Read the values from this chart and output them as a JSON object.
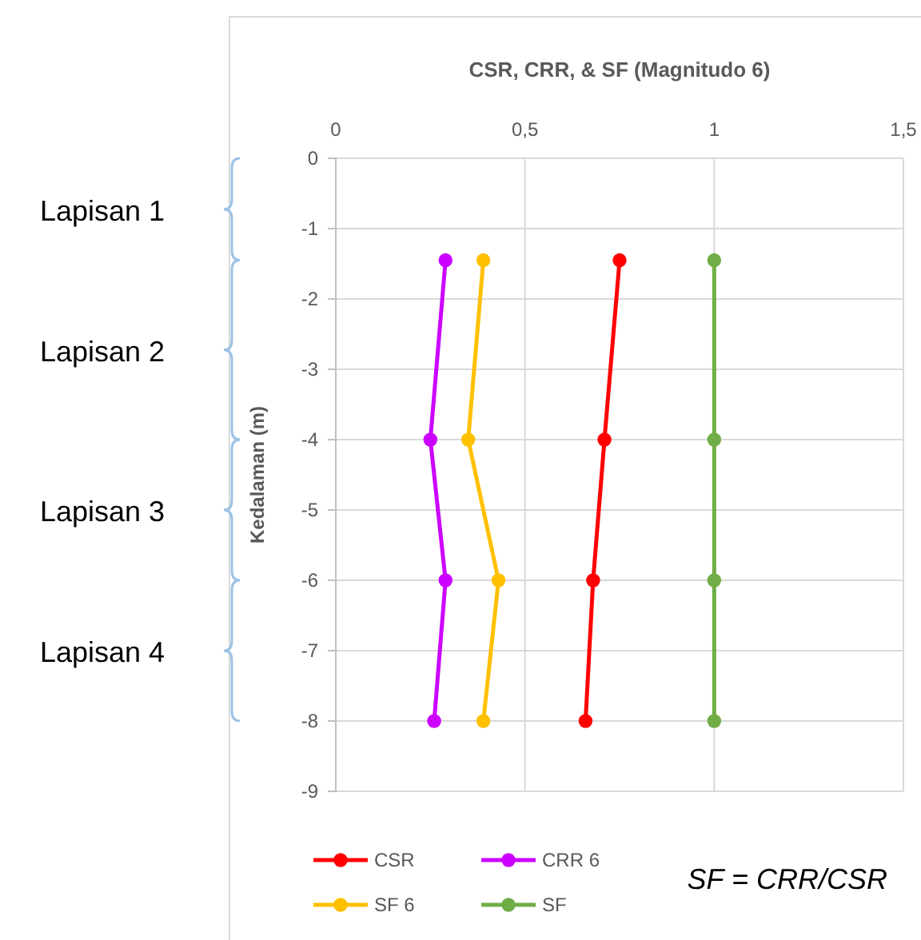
{
  "chart_data": {
    "type": "line",
    "title": "CSR, CRR, & SF (Magnitudo 6)",
    "ylabel": "Kedalaman (m)",
    "xlim": [
      0,
      1.5
    ],
    "xticks": [
      0,
      {
        "value": 0.5,
        "label": "0,5"
      },
      1,
      {
        "value": 1.5,
        "label": "1,5"
      }
    ],
    "ylim": [
      -9,
      0
    ],
    "yticks": [
      -9,
      -8,
      -7,
      -6,
      -5,
      -4,
      -3,
      -2,
      -1,
      0
    ],
    "grid": true,
    "legend": "bottom",
    "marker": "circle",
    "line_style": "solid",
    "series": [
      {
        "name": "CSR",
        "color": "#ff0000",
        "x": [
          0.75,
          0.71,
          0.68,
          0.66
        ],
        "values": [
          -1.45,
          -4,
          -6,
          -8
        ]
      },
      {
        "name": "CRR 6",
        "color": "#cc00ff",
        "x": [
          0.29,
          0.25,
          0.29,
          0.26
        ],
        "values": [
          -1.45,
          -4,
          -6,
          -8
        ]
      },
      {
        "name": "SF 6",
        "color": "#ffc000",
        "x": [
          0.39,
          0.35,
          0.43,
          0.39
        ],
        "values": [
          -1.45,
          -4,
          -6,
          -8
        ]
      },
      {
        "name": "SF",
        "color": "#70ad47",
        "x": [
          1,
          1,
          1,
          1
        ],
        "values": [
          -1.45,
          -4,
          -6,
          -8
        ]
      }
    ],
    "annotations": [
      "Lapisan 1",
      "Lapisan 2",
      "Lapisan 3",
      "Lapisan 4",
      "SF = CRR/CSR"
    ]
  }
}
